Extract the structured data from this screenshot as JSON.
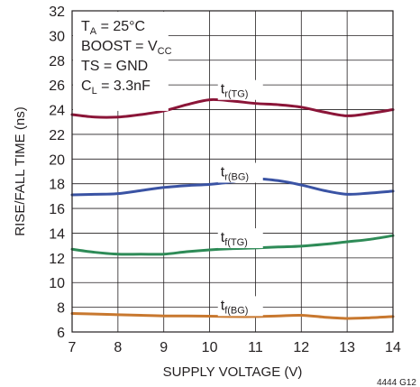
{
  "chart_data": {
    "type": "line",
    "xlabel": "SUPPLY VOLTAGE (V)",
    "ylabel": "RISE/FALL TIME (ns)",
    "xlim": [
      7,
      14
    ],
    "ylim": [
      6,
      32
    ],
    "x_ticks": [
      "7",
      "8",
      "9",
      "10",
      "11",
      "12",
      "13",
      "14"
    ],
    "y_ticks": [
      "6",
      "8",
      "10",
      "12",
      "14",
      "16",
      "18",
      "20",
      "22",
      "24",
      "26",
      "28",
      "30",
      "32"
    ],
    "grid": true,
    "conditions": [
      {
        "main": "T",
        "sub": "A",
        "rest": " = 25°C"
      },
      {
        "main": "BOOST = V",
        "sub": "CC",
        "rest": ""
      },
      {
        "main": "TS = GND",
        "sub": "",
        "rest": ""
      },
      {
        "main": "C",
        "sub": "L",
        "rest": " = 3.3nF"
      }
    ],
    "series": [
      {
        "name": "t",
        "name_sub": "r(TG)",
        "color": "#8b1538",
        "x": [
          7,
          7.5,
          8,
          8.5,
          9,
          9.5,
          10,
          10.5,
          11,
          11.5,
          12,
          12.5,
          13,
          13.5,
          14
        ],
        "values": [
          23.6,
          23.4,
          23.4,
          23.6,
          23.9,
          24.4,
          24.8,
          24.7,
          24.5,
          24.4,
          24.2,
          23.8,
          23.5,
          23.7,
          24.0
        ]
      },
      {
        "name": "t",
        "name_sub": "r(BG)",
        "color": "#3a53a4",
        "x": [
          7,
          7.5,
          8,
          8.5,
          9,
          9.5,
          10,
          10.5,
          11,
          11.5,
          12,
          12.5,
          13,
          13.5,
          14
        ],
        "values": [
          17.1,
          17.15,
          17.2,
          17.45,
          17.7,
          17.85,
          17.95,
          18.15,
          18.4,
          18.25,
          17.9,
          17.45,
          17.15,
          17.25,
          17.4
        ]
      },
      {
        "name": "t",
        "name_sub": "f(TG)",
        "color": "#2e8b57",
        "x": [
          7,
          7.5,
          8,
          8.5,
          9,
          9.5,
          10,
          10.5,
          11,
          11.5,
          12,
          12.5,
          13,
          13.5,
          14
        ],
        "values": [
          12.7,
          12.45,
          12.3,
          12.3,
          12.3,
          12.5,
          12.65,
          12.75,
          12.8,
          12.88,
          12.95,
          13.1,
          13.3,
          13.5,
          13.8
        ]
      },
      {
        "name": "t",
        "name_sub": "f(BG)",
        "color": "#c8782f",
        "x": [
          7,
          7.5,
          8,
          8.5,
          9,
          9.5,
          10,
          10.5,
          11,
          11.5,
          12,
          12.5,
          13,
          13.5,
          14
        ],
        "values": [
          7.5,
          7.45,
          7.4,
          7.35,
          7.3,
          7.3,
          7.28,
          7.25,
          7.25,
          7.3,
          7.35,
          7.2,
          7.1,
          7.15,
          7.25
        ]
      }
    ],
    "figure_id": "4444 G12"
  }
}
